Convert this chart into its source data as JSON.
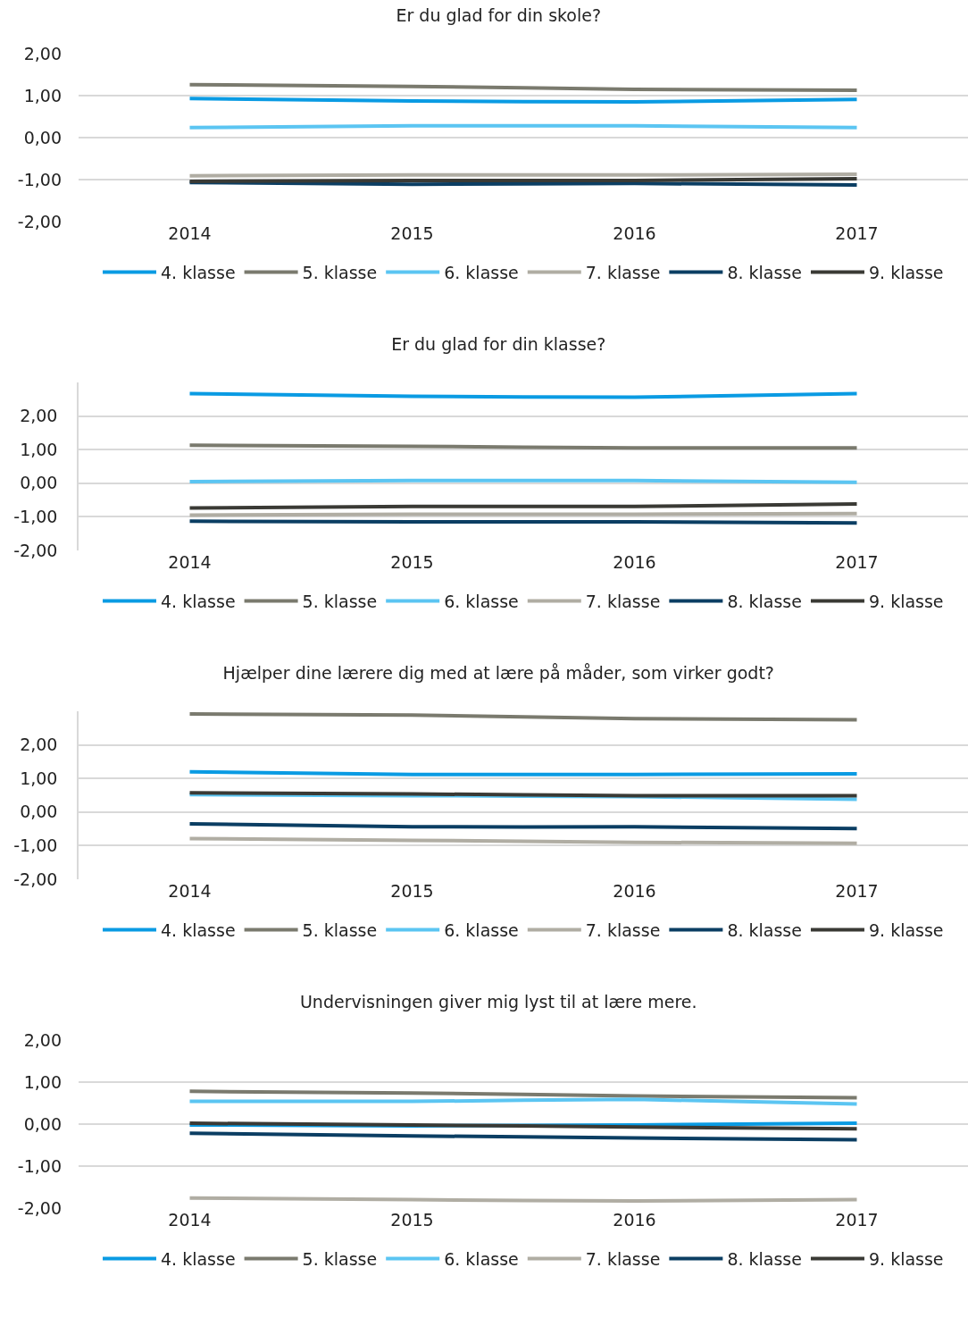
{
  "chart_data": [
    {
      "type": "line",
      "title": "Er du glad for din skole?",
      "categories": [
        "2014",
        "2015",
        "2016",
        "2017"
      ],
      "ylim": [
        -2,
        2
      ],
      "yticks": [
        {
          "value": -2,
          "label": "-2,00"
        },
        {
          "value": -1,
          "label": "-1,00"
        },
        {
          "value": 0,
          "label": "0,00"
        },
        {
          "value": 1,
          "label": "1,00"
        },
        {
          "value": 2,
          "label": "2,00"
        }
      ],
      "grid": "y",
      "legend": "bottom",
      "marker": "none",
      "line_style": "solid",
      "series": [
        {
          "name": "4. klasse",
          "color": "#0a9be3",
          "values": [
            0.93,
            0.87,
            0.85,
            0.91
          ]
        },
        {
          "name": "5. klasse",
          "color": "#7a7a6e",
          "values": [
            1.26,
            1.22,
            1.15,
            1.13
          ]
        },
        {
          "name": "6. klasse",
          "color": "#5bc5f2",
          "values": [
            0.24,
            0.28,
            0.28,
            0.24
          ]
        },
        {
          "name": "7. klasse",
          "color": "#b0ada3",
          "values": [
            -0.91,
            -0.89,
            -0.89,
            -0.87
          ]
        },
        {
          "name": "8. klasse",
          "color": "#0b3e63",
          "values": [
            -1.07,
            -1.11,
            -1.09,
            -1.13
          ]
        },
        {
          "name": "9. klasse",
          "color": "#3a3a35",
          "values": [
            -1.04,
            -1.02,
            -1.02,
            -0.98
          ]
        }
      ]
    },
    {
      "type": "line",
      "title": "Er du glad for din klasse?",
      "categories": [
        "2014",
        "2015",
        "2016",
        "2017"
      ],
      "ylim": [
        -2,
        3
      ],
      "yticks": [
        {
          "value": -2,
          "label": "-2,00"
        },
        {
          "value": -1,
          "label": "-1,00"
        },
        {
          "value": 0,
          "label": "0,00"
        },
        {
          "value": 1,
          "label": "1,00"
        },
        {
          "value": 2,
          "label": "2,00"
        }
      ],
      "grid": "y",
      "legend": "bottom",
      "marker": "none",
      "line_style": "solid",
      "series": [
        {
          "name": "4. klasse",
          "color": "#0a9be3",
          "values": [
            2.67,
            2.59,
            2.56,
            2.67
          ]
        },
        {
          "name": "5. klasse",
          "color": "#7a7a6e",
          "values": [
            1.13,
            1.1,
            1.05,
            1.05
          ]
        },
        {
          "name": "6. klasse",
          "color": "#5bc5f2",
          "values": [
            0.05,
            0.08,
            0.08,
            0.03
          ]
        },
        {
          "name": "7. klasse",
          "color": "#b0ada3",
          "values": [
            -0.95,
            -0.92,
            -0.92,
            -0.9
          ]
        },
        {
          "name": "8. klasse",
          "color": "#0b3e63",
          "values": [
            -1.13,
            -1.15,
            -1.15,
            -1.18
          ]
        },
        {
          "name": "9. klasse",
          "color": "#3a3a35",
          "values": [
            -0.74,
            -0.69,
            -0.69,
            -0.62
          ]
        }
      ]
    },
    {
      "type": "line",
      "title": "Hjælper dine lærere dig med at lære på måder, som virker godt?",
      "categories": [
        "2014",
        "2015",
        "2016",
        "2017"
      ],
      "ylim": [
        -2,
        3
      ],
      "yticks": [
        {
          "value": -2,
          "label": "-2,00"
        },
        {
          "value": -1,
          "label": "-1,00"
        },
        {
          "value": 0,
          "label": "0,00"
        },
        {
          "value": 1,
          "label": "1,00"
        },
        {
          "value": 2,
          "label": "2,00"
        }
      ],
      "grid": "y",
      "legend": "bottom",
      "marker": "none",
      "line_style": "solid",
      "series": [
        {
          "name": "4. klasse",
          "color": "#0a9be3",
          "values": [
            1.2,
            1.12,
            1.12,
            1.14
          ]
        },
        {
          "name": "5. klasse",
          "color": "#7a7a6e",
          "values": [
            2.92,
            2.89,
            2.78,
            2.75
          ]
        },
        {
          "name": "6. klasse",
          "color": "#5bc5f2",
          "values": [
            0.52,
            0.49,
            0.46,
            0.38
          ]
        },
        {
          "name": "7. klasse",
          "color": "#b0ada3",
          "values": [
            -0.79,
            -0.84,
            -0.9,
            -0.93
          ]
        },
        {
          "name": "8. klasse",
          "color": "#0b3e63",
          "values": [
            -0.35,
            -0.44,
            -0.44,
            -0.49
          ]
        },
        {
          "name": "9. klasse",
          "color": "#3a3a35",
          "values": [
            0.57,
            0.54,
            0.49,
            0.49
          ]
        }
      ]
    },
    {
      "type": "line",
      "title": "Undervisningen giver mig lyst til at lære mere.",
      "categories": [
        "2014",
        "2015",
        "2016",
        "2017"
      ],
      "ylim": [
        -2,
        2
      ],
      "yticks": [
        {
          "value": -2,
          "label": "-2,00"
        },
        {
          "value": -1,
          "label": "-1,00"
        },
        {
          "value": 0,
          "label": "0,00"
        },
        {
          "value": 1,
          "label": "1,00"
        },
        {
          "value": 2,
          "label": "2,00"
        }
      ],
      "grid": "y",
      "legend": "bottom",
      "marker": "none",
      "line_style": "solid",
      "series": [
        {
          "name": "4. klasse",
          "color": "#0a9be3",
          "values": [
            -0.02,
            -0.04,
            -0.02,
            0.02
          ]
        },
        {
          "name": "5. klasse",
          "color": "#7a7a6e",
          "values": [
            0.78,
            0.74,
            0.67,
            0.63
          ]
        },
        {
          "name": "6. klasse",
          "color": "#5bc5f2",
          "values": [
            0.54,
            0.54,
            0.59,
            0.48
          ]
        },
        {
          "name": "7. klasse",
          "color": "#b0ada3",
          "values": [
            -1.76,
            -1.8,
            -1.83,
            -1.8
          ]
        },
        {
          "name": "8. klasse",
          "color": "#0b3e63",
          "values": [
            -0.22,
            -0.28,
            -0.33,
            -0.37
          ]
        },
        {
          "name": "9. klasse",
          "color": "#3a3a35",
          "values": [
            0.02,
            -0.02,
            -0.07,
            -0.11
          ]
        }
      ]
    }
  ]
}
